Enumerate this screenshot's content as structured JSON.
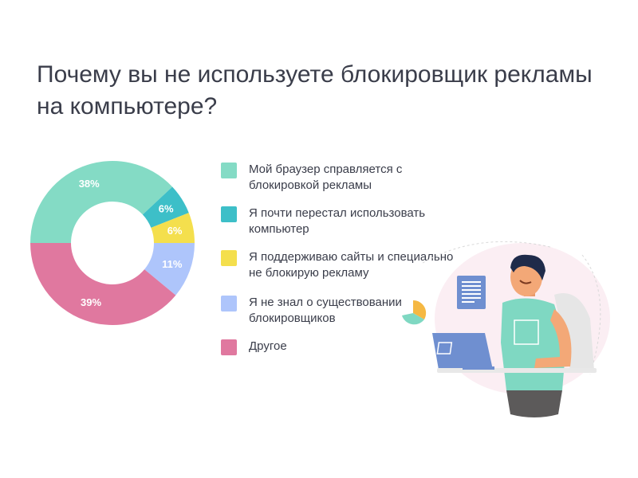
{
  "chart_data": {
    "type": "pie",
    "title": "Почему вы не используете блокировщик рекламы на компьютере?",
    "legend_position": "right",
    "slices": [
      {
        "name": "Мой браузер справляется с блокировкой рекламы",
        "value": 38,
        "label": "38%",
        "color": "#84dbc5"
      },
      {
        "name": "Я почти перестал использовать компьютер",
        "value": 6,
        "label": "6%",
        "color": "#3dbfc8"
      },
      {
        "name": "Я поддерживаю сайты и специально не блокирую рекламу",
        "value": 6,
        "label": "6%",
        "color": "#f4df4d"
      },
      {
        "name": "Я не знал о существовании блокировщиков",
        "value": 11,
        "label": "11%",
        "color": "#aec5fb"
      },
      {
        "name": "Другое",
        "value": 39,
        "label": "39%",
        "color": "#e0789f"
      }
    ]
  }
}
